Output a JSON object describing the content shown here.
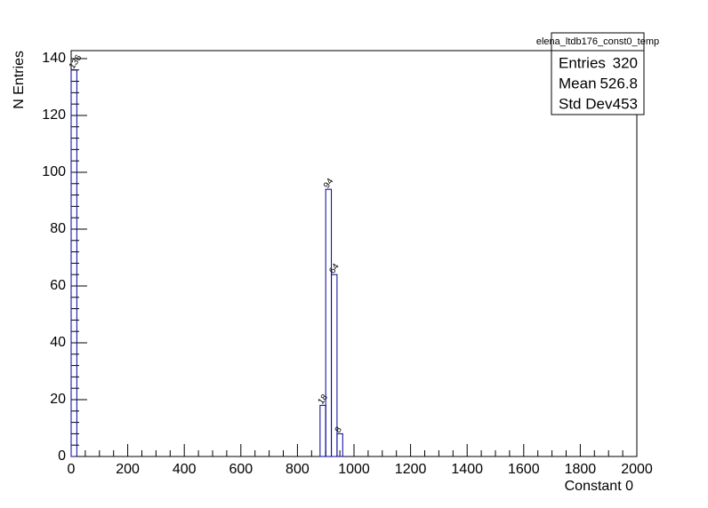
{
  "chart_data": {
    "type": "histogram",
    "x_label": "Constant 0",
    "y_label": "N Entries",
    "bins": [
      0,
      20,
      40,
      60,
      80,
      100,
      120,
      140,
      160,
      180,
      200,
      220,
      240,
      260,
      280,
      300,
      320,
      340,
      360,
      380,
      400,
      420,
      440,
      460,
      480,
      500,
      520,
      540,
      560,
      580,
      600,
      620,
      640,
      660,
      680,
      700,
      720,
      740,
      760,
      780,
      800,
      820,
      840,
      860,
      880,
      900,
      920,
      940,
      960,
      980,
      1000,
      1020,
      1040,
      1060,
      1080,
      1100,
      1120,
      1140,
      1160,
      1180,
      1200,
      1220,
      1240,
      1260,
      1280,
      1300,
      1320,
      1340,
      1360,
      1380,
      1400,
      1420,
      1440,
      1460,
      1480,
      1500,
      1520,
      1540,
      1560,
      1580,
      1600,
      1620,
      1640,
      1660,
      1680,
      1700,
      1720,
      1740,
      1760,
      1780,
      1800,
      1820,
      1840,
      1860,
      1880,
      1900,
      1920,
      1940,
      1960,
      1980,
      2000
    ],
    "values": [
      136,
      0,
      0,
      0,
      0,
      0,
      0,
      0,
      0,
      0,
      0,
      0,
      0,
      0,
      0,
      0,
      0,
      0,
      0,
      0,
      0,
      0,
      0,
      0,
      0,
      0,
      0,
      0,
      0,
      0,
      0,
      0,
      0,
      0,
      0,
      0,
      0,
      0,
      0,
      0,
      0,
      0,
      0,
      0,
      18,
      94,
      64,
      8,
      0,
      0,
      0,
      0,
      0,
      0,
      0,
      0,
      0,
      0,
      0,
      0,
      0,
      0,
      0,
      0,
      0,
      0,
      0,
      0,
      0,
      0,
      0,
      0,
      0,
      0,
      0,
      0,
      0,
      0,
      0,
      0,
      0,
      0,
      0,
      0,
      0,
      0,
      0,
      0,
      0,
      0,
      0,
      0,
      0,
      0,
      0,
      0,
      0,
      0,
      0,
      0
    ],
    "color": "#000099",
    "xlim": [
      0,
      2000
    ],
    "xticks": [
      0,
      200,
      400,
      600,
      800,
      1000,
      1200,
      1400,
      1600,
      1800,
      2000
    ],
    "ylim": [
      0,
      142.8
    ],
    "yticks": [
      0,
      20,
      40,
      60,
      80,
      100,
      120,
      140
    ],
    "stats": {
      "title": "elena_ltdb176_const0_temp",
      "rows": [
        {
          "label": "Entries",
          "value": 320
        },
        {
          "label": "Mean",
          "value": 526.8
        },
        {
          "label": "Std Dev",
          "value": 453
        }
      ]
    }
  }
}
